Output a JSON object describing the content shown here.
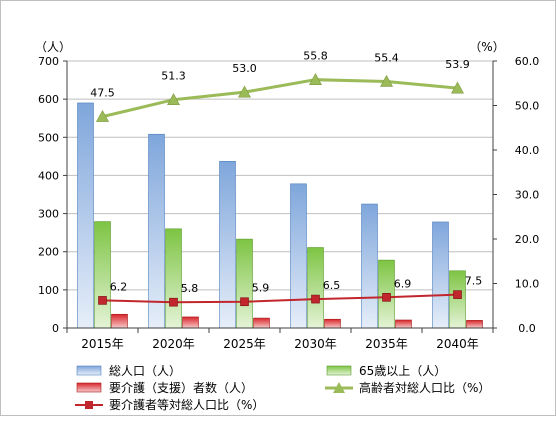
{
  "chart_data": {
    "type": "bar",
    "title": "",
    "categories": [
      "2015年",
      "2020年",
      "2025年",
      "2030年",
      "2035年",
      "2040年"
    ],
    "y_left": {
      "unit_label": "（人）",
      "range": [
        0,
        700
      ],
      "ticks": [
        "0",
        "100",
        "200",
        "300",
        "400",
        "500",
        "600",
        "700"
      ]
    },
    "y_right": {
      "unit_label": "（%）",
      "range": [
        0,
        60
      ],
      "ticks": [
        "0.0",
        "10.0",
        "20.0",
        "30.0",
        "40.0",
        "50.0",
        "60.0"
      ]
    },
    "grid": "horizontal",
    "legend_position": "bottom",
    "series": [
      {
        "name": "総人口（人）",
        "type": "bar",
        "axis": "left",
        "color": "#9bbbe4",
        "values": [
          590,
          508,
          437,
          378,
          325,
          278
        ]
      },
      {
        "name": "65歳以上（人）",
        "type": "bar",
        "axis": "left",
        "color": "#8fcb4f",
        "values": [
          279,
          260,
          233,
          211,
          178,
          150
        ]
      },
      {
        "name": "要介護（支援）者数（人）",
        "type": "bar",
        "axis": "left",
        "color": "#e03a3a",
        "values": [
          36,
          29,
          26,
          23,
          21,
          20
        ]
      },
      {
        "name": "高齢者対総人口比（%）",
        "type": "line",
        "axis": "right",
        "color": "#9bbb59",
        "marker": "triangle",
        "values": [
          47.5,
          51.3,
          53.0,
          55.8,
          55.4,
          53.9
        ],
        "labels": [
          "47.5",
          "51.3",
          "53.0",
          "55.8",
          "55.4",
          "53.9"
        ]
      },
      {
        "name": "要介護者等対総人口比（%）",
        "type": "line",
        "axis": "right",
        "color": "#c0262c",
        "marker": "square",
        "values": [
          6.2,
          5.8,
          5.9,
          6.5,
          6.9,
          7.5
        ],
        "labels": [
          "6.2",
          "5.8",
          "5.9",
          "6.5",
          "6.9",
          "7.5"
        ]
      }
    ]
  }
}
